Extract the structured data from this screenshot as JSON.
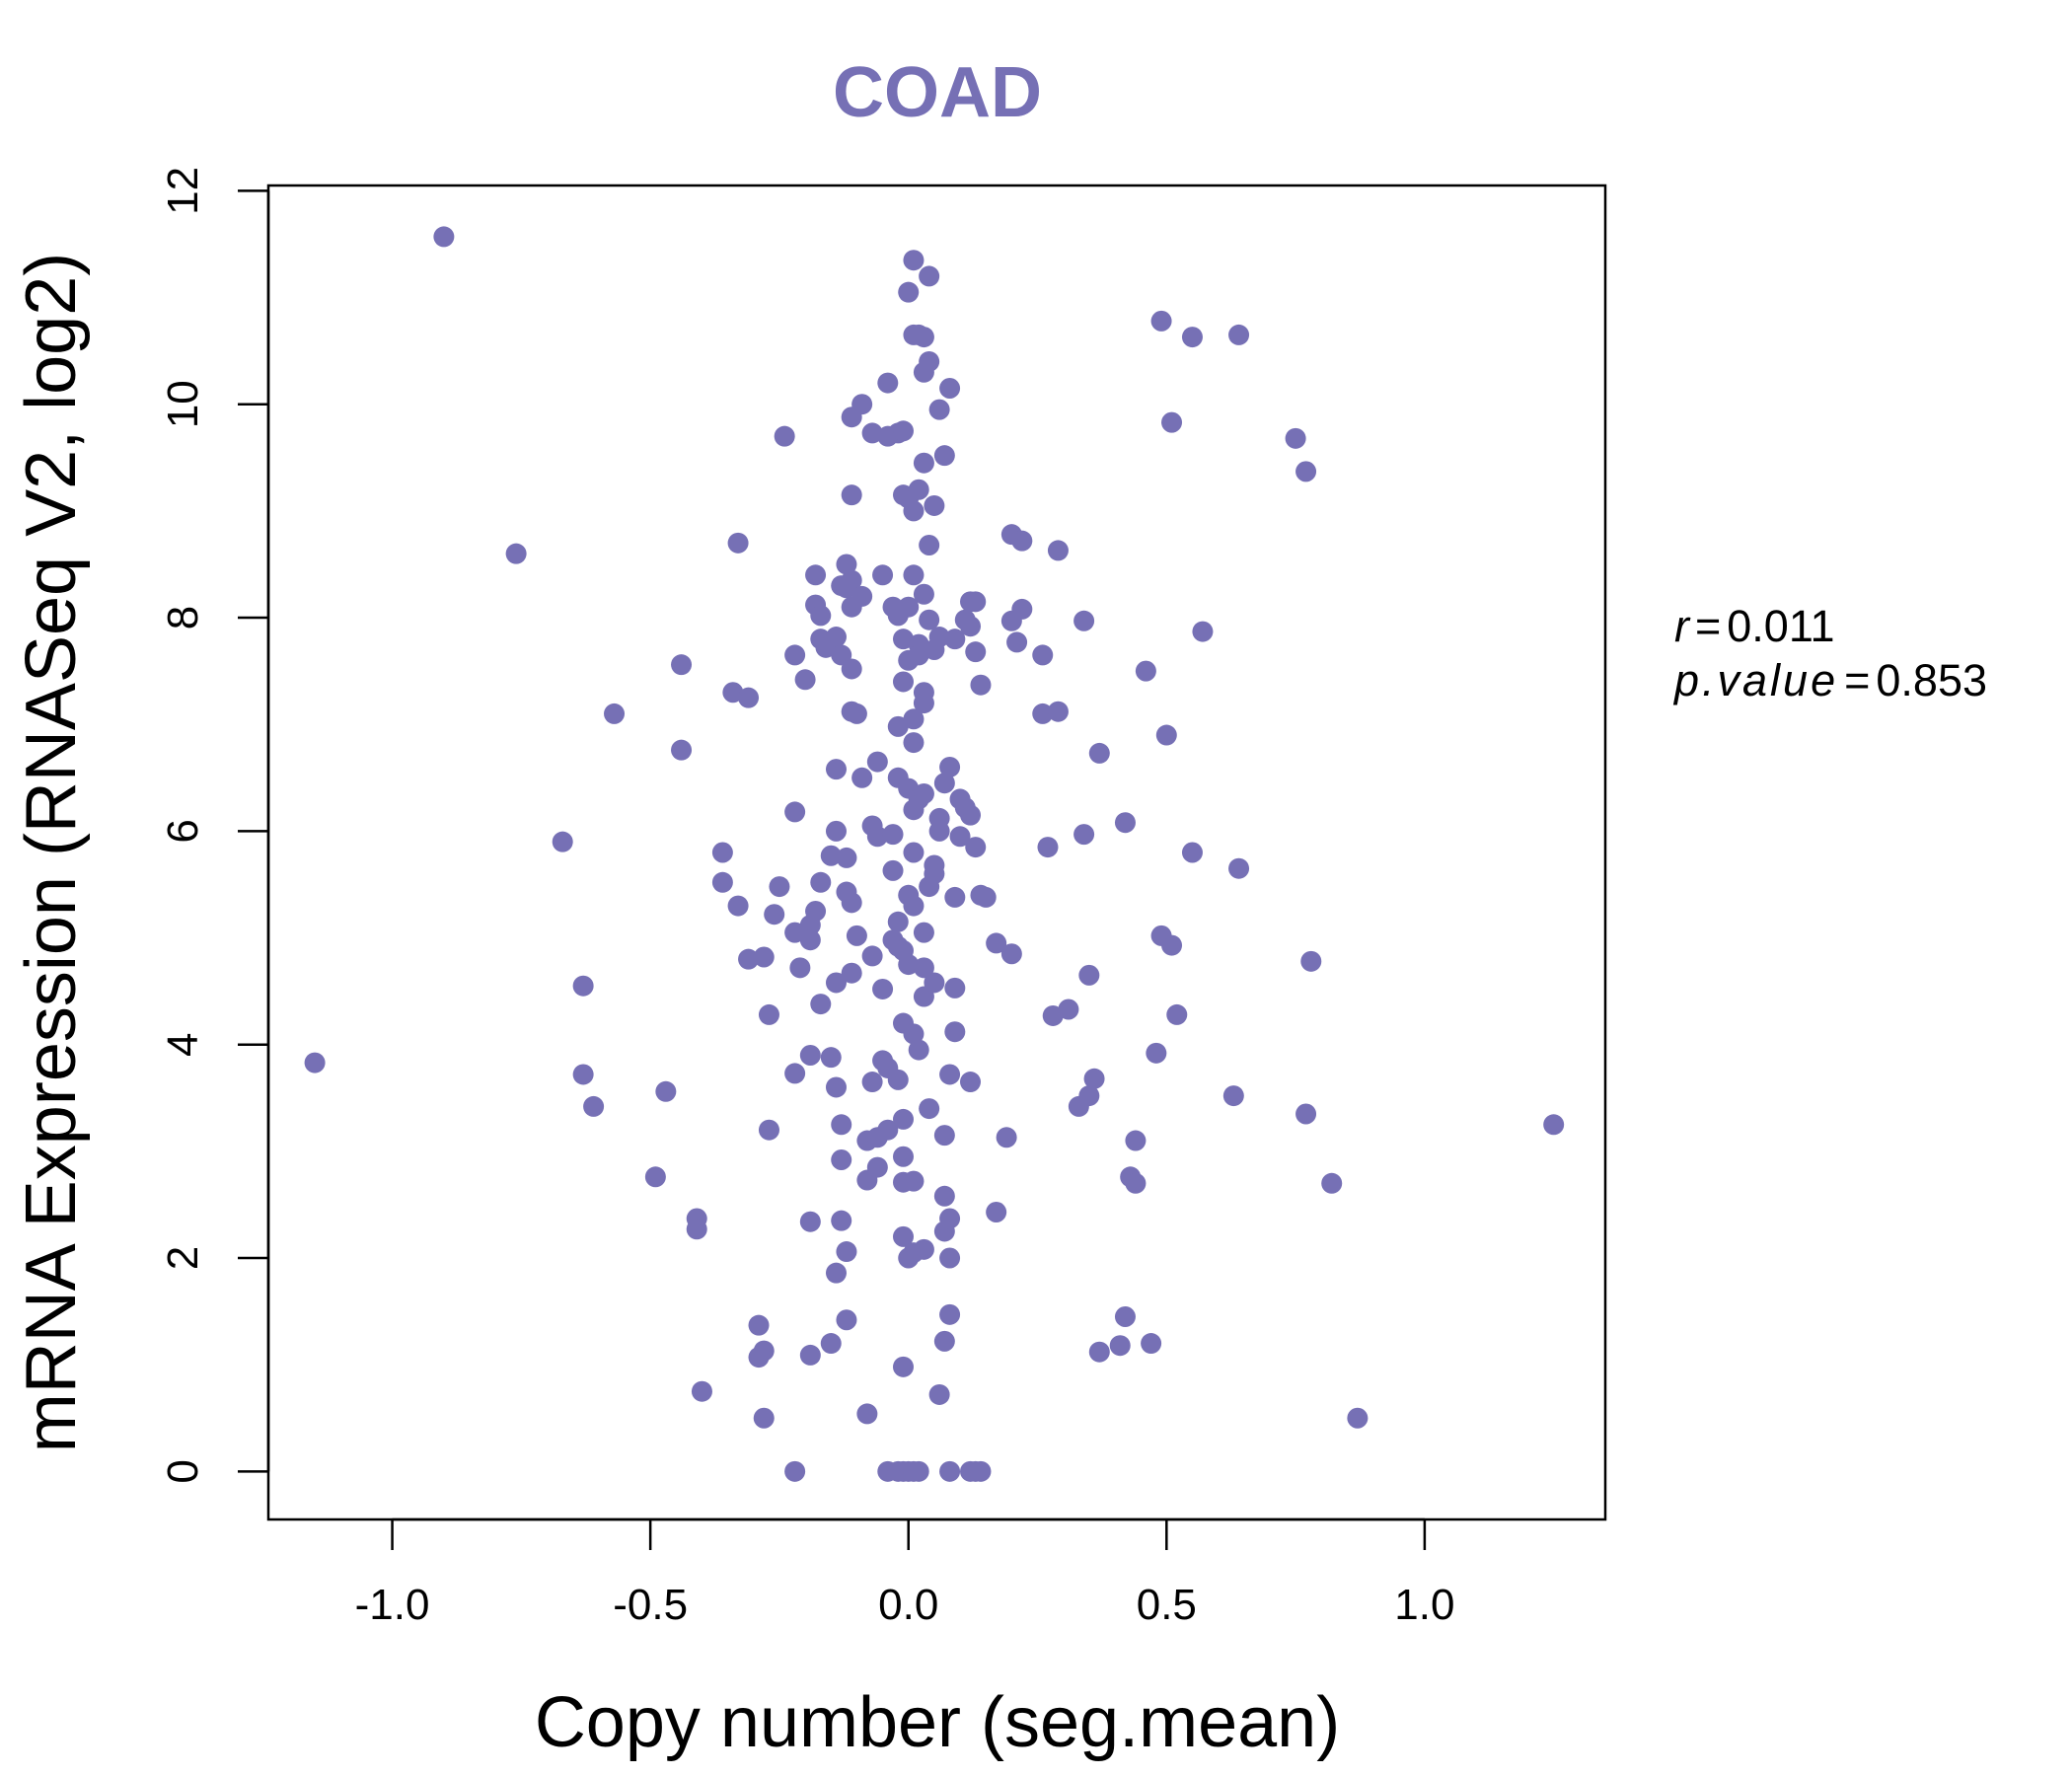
{
  "chart_data": {
    "type": "scatter",
    "title": "COAD",
    "xlabel": "Copy number (seg.mean)",
    "ylabel": "mRNA Expression (RNASeq V2, log2)",
    "xlim": [
      -1.24,
      1.35
    ],
    "ylim": [
      -0.45,
      12.05
    ],
    "xticks": [
      -1.0,
      -0.5,
      0.0,
      0.5,
      1.0
    ],
    "xtick_labels": [
      "-1.0",
      "-0.5",
      "0.0",
      "0.5",
      "1.0"
    ],
    "yticks": [
      0,
      2,
      4,
      6,
      8,
      10,
      12
    ],
    "ytick_labels": [
      "0",
      "2",
      "4",
      "6",
      "8",
      "10",
      "12"
    ],
    "grid": false,
    "point_color": "#7670B5",
    "annotations": {
      "r_symbol": "r",
      "r_value": "0.011",
      "p_symbol": "p.value",
      "p_value": "0.853",
      "equals": "="
    },
    "points": [
      [
        -0.9,
        11.57
      ],
      [
        -0.76,
        8.6
      ],
      [
        -1.15,
        3.83
      ],
      [
        -0.67,
        5.9
      ],
      [
        -0.63,
        4.55
      ],
      [
        -0.63,
        3.72
      ],
      [
        -0.61,
        3.42
      ],
      [
        -0.57,
        7.1
      ],
      [
        -0.49,
        2.76
      ],
      [
        -0.47,
        3.56
      ],
      [
        -0.44,
        7.56
      ],
      [
        -0.44,
        6.76
      ],
      [
        -0.41,
        2.37
      ],
      [
        -0.41,
        2.27
      ],
      [
        -0.4,
        0.75
      ],
      [
        -0.36,
        5.8
      ],
      [
        -0.36,
        5.52
      ],
      [
        -0.34,
        7.3
      ],
      [
        -0.33,
        8.7
      ],
      [
        -0.33,
        5.3
      ],
      [
        -0.31,
        7.25
      ],
      [
        -0.31,
        4.8
      ],
      [
        -0.29,
        1.37
      ],
      [
        -0.29,
        1.07
      ],
      [
        -0.28,
        4.82
      ],
      [
        -0.28,
        0.5
      ],
      [
        -0.28,
        1.13
      ],
      [
        -0.27,
        3.2
      ],
      [
        -0.27,
        4.28
      ],
      [
        -0.26,
        5.22
      ],
      [
        -0.25,
        5.48
      ],
      [
        -0.24,
        9.7
      ],
      [
        -0.22,
        7.65
      ],
      [
        -0.22,
        6.18
      ],
      [
        -0.22,
        5.05
      ],
      [
        -0.22,
        3.73
      ],
      [
        -0.22,
        0.0
      ],
      [
        -0.21,
        4.72
      ],
      [
        -0.2,
        7.42
      ],
      [
        -0.19,
        5.12
      ],
      [
        -0.19,
        4.98
      ],
      [
        -0.19,
        3.9
      ],
      [
        -0.19,
        2.34
      ],
      [
        -0.19,
        1.09
      ],
      [
        -0.18,
        8.12
      ],
      [
        -0.18,
        8.4
      ],
      [
        -0.18,
        5.25
      ],
      [
        -0.17,
        7.8
      ],
      [
        -0.17,
        8.02
      ],
      [
        -0.17,
        5.52
      ],
      [
        -0.17,
        4.38
      ],
      [
        -0.16,
        7.72
      ],
      [
        -0.15,
        5.77
      ],
      [
        -0.15,
        3.88
      ],
      [
        -0.15,
        1.2
      ],
      [
        -0.14,
        7.82
      ],
      [
        -0.14,
        6.58
      ],
      [
        -0.14,
        6.0
      ],
      [
        -0.14,
        4.58
      ],
      [
        -0.14,
        3.6
      ],
      [
        -0.14,
        1.86
      ],
      [
        -0.13,
        8.3
      ],
      [
        -0.13,
        7.65
      ],
      [
        -0.13,
        3.25
      ],
      [
        -0.13,
        2.92
      ],
      [
        -0.13,
        2.35
      ],
      [
        -0.12,
        8.5
      ],
      [
        -0.12,
        8.28
      ],
      [
        -0.12,
        5.75
      ],
      [
        -0.12,
        5.43
      ],
      [
        -0.12,
        2.06
      ],
      [
        -0.12,
        1.42
      ],
      [
        -0.11,
        9.88
      ],
      [
        -0.11,
        9.15
      ],
      [
        -0.11,
        8.35
      ],
      [
        -0.11,
        8.1
      ],
      [
        -0.11,
        7.52
      ],
      [
        -0.11,
        7.12
      ],
      [
        -0.11,
        5.33
      ],
      [
        -0.11,
        4.67
      ],
      [
        -0.1,
        7.1
      ],
      [
        -0.1,
        5.02
      ],
      [
        -0.09,
        10.0
      ],
      [
        -0.09,
        8.2
      ],
      [
        -0.09,
        6.5
      ],
      [
        -0.08,
        3.1
      ],
      [
        -0.08,
        2.73
      ],
      [
        -0.08,
        0.54
      ],
      [
        -0.07,
        9.73
      ],
      [
        -0.07,
        6.05
      ],
      [
        -0.07,
        4.83
      ],
      [
        -0.07,
        3.65
      ],
      [
        -0.06,
        6.65
      ],
      [
        -0.06,
        5.95
      ],
      [
        -0.06,
        3.13
      ],
      [
        -0.06,
        2.85
      ],
      [
        -0.05,
        8.4
      ],
      [
        -0.05,
        4.52
      ],
      [
        -0.05,
        3.85
      ],
      [
        -0.04,
        10.2
      ],
      [
        -0.04,
        9.7
      ],
      [
        -0.04,
        3.78
      ],
      [
        -0.04,
        3.2
      ],
      [
        -0.04,
        0.0
      ],
      [
        -0.03,
        8.1
      ],
      [
        -0.03,
        5.63
      ],
      [
        -0.03,
        5.97
      ],
      [
        -0.03,
        4.98
      ],
      [
        -0.02,
        9.73
      ],
      [
        -0.02,
        8.02
      ],
      [
        -0.02,
        6.98
      ],
      [
        -0.02,
        6.5
      ],
      [
        -0.02,
        5.15
      ],
      [
        -0.02,
        4.92
      ],
      [
        -0.02,
        3.67
      ],
      [
        -0.02,
        0.0
      ],
      [
        -0.01,
        9.75
      ],
      [
        -0.01,
        9.15
      ],
      [
        -0.01,
        7.8
      ],
      [
        -0.01,
        7.4
      ],
      [
        -0.01,
        4.88
      ],
      [
        -0.01,
        4.2
      ],
      [
        -0.01,
        3.3
      ],
      [
        -0.01,
        2.95
      ],
      [
        -0.01,
        2.71
      ],
      [
        -0.01,
        2.2
      ],
      [
        -0.01,
        0.98
      ],
      [
        -0.01,
        0.0
      ],
      [
        0.0,
        11.05
      ],
      [
        0.0,
        9.12
      ],
      [
        0.0,
        8.1
      ],
      [
        0.0,
        7.6
      ],
      [
        0.0,
        6.4
      ],
      [
        0.0,
        5.4
      ],
      [
        0.0,
        4.75
      ],
      [
        0.0,
        2.0
      ],
      [
        0.0,
        0.0
      ],
      [
        0.01,
        11.35
      ],
      [
        0.01,
        10.65
      ],
      [
        0.01,
        9.0
      ],
      [
        0.01,
        8.4
      ],
      [
        0.01,
        7.05
      ],
      [
        0.01,
        6.83
      ],
      [
        0.01,
        6.2
      ],
      [
        0.01,
        5.8
      ],
      [
        0.01,
        5.3
      ],
      [
        0.01,
        4.1
      ],
      [
        0.01,
        2.72
      ],
      [
        0.01,
        2.05
      ],
      [
        0.01,
        0.0
      ],
      [
        0.02,
        10.65
      ],
      [
        0.02,
        9.2
      ],
      [
        0.02,
        7.75
      ],
      [
        0.02,
        7.65
      ],
      [
        0.02,
        6.3
      ],
      [
        0.02,
        3.95
      ],
      [
        0.02,
        0.0
      ],
      [
        0.03,
        10.63
      ],
      [
        0.03,
        10.3
      ],
      [
        0.03,
        9.45
      ],
      [
        0.03,
        8.22
      ],
      [
        0.03,
        7.3
      ],
      [
        0.03,
        7.2
      ],
      [
        0.03,
        6.35
      ],
      [
        0.03,
        5.05
      ],
      [
        0.03,
        4.72
      ],
      [
        0.03,
        4.45
      ],
      [
        0.03,
        2.08
      ],
      [
        0.04,
        11.2
      ],
      [
        0.04,
        10.4
      ],
      [
        0.04,
        8.68
      ],
      [
        0.04,
        7.98
      ],
      [
        0.04,
        5.48
      ],
      [
        0.04,
        3.4
      ],
      [
        0.05,
        9.05
      ],
      [
        0.05,
        7.7
      ],
      [
        0.05,
        5.68
      ],
      [
        0.05,
        5.6
      ],
      [
        0.05,
        4.58
      ],
      [
        0.06,
        9.95
      ],
      [
        0.06,
        7.82
      ],
      [
        0.06,
        6.12
      ],
      [
        0.06,
        6.0
      ],
      [
        0.06,
        0.72
      ],
      [
        0.07,
        9.52
      ],
      [
        0.07,
        6.45
      ],
      [
        0.07,
        3.15
      ],
      [
        0.07,
        2.58
      ],
      [
        0.07,
        2.25
      ],
      [
        0.07,
        1.22
      ],
      [
        0.08,
        10.15
      ],
      [
        0.08,
        6.6
      ],
      [
        0.08,
        3.72
      ],
      [
        0.08,
        2.37
      ],
      [
        0.08,
        2.0
      ],
      [
        0.08,
        1.47
      ],
      [
        0.08,
        0.0
      ],
      [
        0.09,
        7.8
      ],
      [
        0.09,
        5.38
      ],
      [
        0.09,
        4.53
      ],
      [
        0.09,
        4.12
      ],
      [
        0.1,
        6.3
      ],
      [
        0.1,
        5.95
      ],
      [
        0.11,
        7.98
      ],
      [
        0.11,
        6.22
      ],
      [
        0.12,
        8.15
      ],
      [
        0.12,
        7.92
      ],
      [
        0.12,
        6.15
      ],
      [
        0.12,
        3.65
      ],
      [
        0.12,
        0.0
      ],
      [
        0.13,
        8.15
      ],
      [
        0.13,
        7.68
      ],
      [
        0.13,
        5.85
      ],
      [
        0.13,
        0.0
      ],
      [
        0.14,
        7.37
      ],
      [
        0.14,
        5.4
      ],
      [
        0.14,
        0.0
      ],
      [
        0.15,
        5.38
      ],
      [
        0.17,
        4.95
      ],
      [
        0.17,
        2.43
      ],
      [
        0.19,
        3.13
      ],
      [
        0.2,
        7.97
      ],
      [
        0.2,
        4.85
      ],
      [
        0.2,
        8.78
      ],
      [
        0.21,
        7.77
      ],
      [
        0.22,
        8.72
      ],
      [
        0.22,
        8.08
      ],
      [
        0.26,
        7.65
      ],
      [
        0.26,
        7.1
      ],
      [
        0.27,
        5.85
      ],
      [
        0.28,
        4.27
      ],
      [
        0.29,
        8.63
      ],
      [
        0.29,
        7.12
      ],
      [
        0.31,
        4.33
      ],
      [
        0.33,
        3.42
      ],
      [
        0.34,
        7.97
      ],
      [
        0.34,
        5.97
      ],
      [
        0.35,
        3.52
      ],
      [
        0.35,
        4.65
      ],
      [
        0.36,
        3.68
      ],
      [
        0.37,
        6.73
      ],
      [
        0.37,
        1.12
      ],
      [
        0.41,
        1.18
      ],
      [
        0.42,
        6.08
      ],
      [
        0.42,
        1.45
      ],
      [
        0.43,
        2.76
      ],
      [
        0.44,
        2.7
      ],
      [
        0.44,
        3.1
      ],
      [
        0.46,
        7.5
      ],
      [
        0.47,
        1.2
      ],
      [
        0.48,
        3.92
      ],
      [
        0.49,
        10.78
      ],
      [
        0.49,
        5.02
      ],
      [
        0.5,
        6.9
      ],
      [
        0.51,
        9.83
      ],
      [
        0.51,
        4.93
      ],
      [
        0.52,
        4.28
      ],
      [
        0.55,
        10.63
      ],
      [
        0.55,
        5.8
      ],
      [
        0.57,
        7.87
      ],
      [
        0.63,
        3.52
      ],
      [
        0.64,
        10.65
      ],
      [
        0.64,
        5.65
      ],
      [
        0.75,
        9.68
      ],
      [
        0.77,
        9.37
      ],
      [
        0.77,
        3.35
      ],
      [
        0.78,
        4.78
      ],
      [
        0.82,
        2.7
      ],
      [
        0.87,
        0.5
      ],
      [
        1.25,
        3.25
      ]
    ]
  }
}
